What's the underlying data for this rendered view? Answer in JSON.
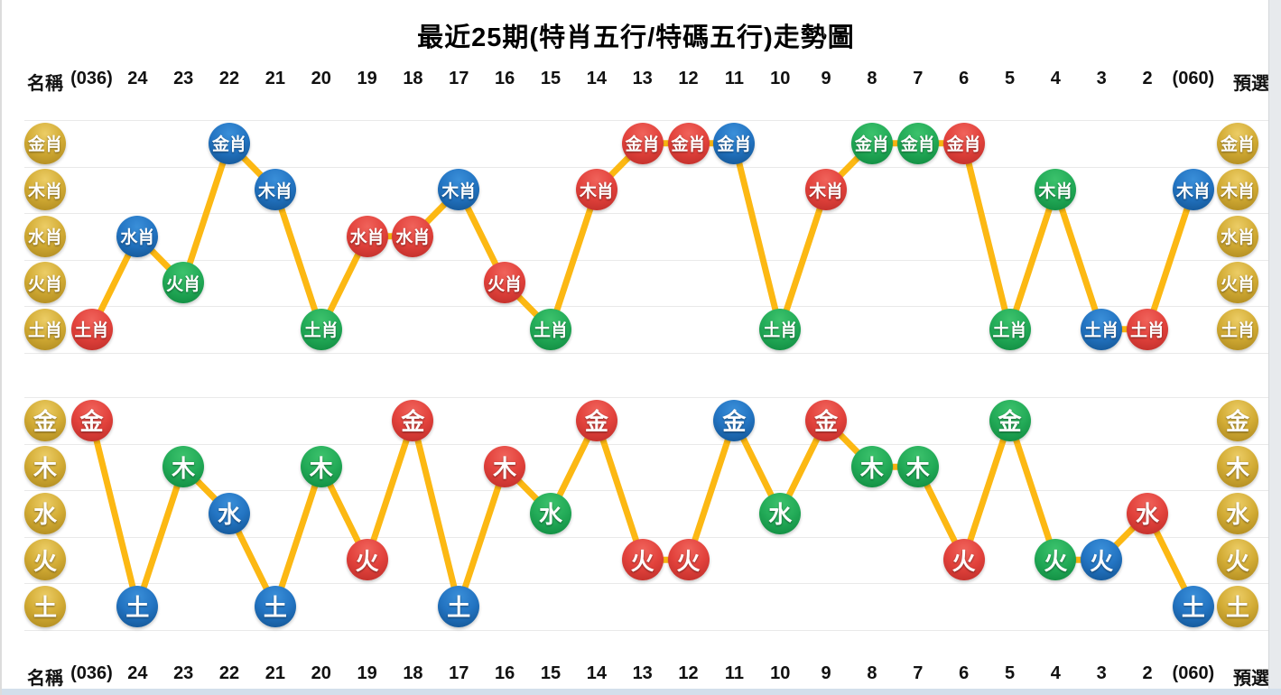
{
  "title": "最近25期(特肖五行/特碼五行)走勢圖",
  "header": {
    "left_label": "名稱",
    "right_label": "預選",
    "columns": [
      "(036)",
      "24",
      "23",
      "22",
      "21",
      "20",
      "19",
      "18",
      "17",
      "16",
      "15",
      "14",
      "13",
      "12",
      "11",
      "10",
      "9",
      "8",
      "7",
      "6",
      "5",
      "4",
      "3",
      "2",
      "(060)"
    ]
  },
  "colors": {
    "red": "#d6403a",
    "blue": "#1e6db8",
    "green": "#21a855",
    "gold": "#cda32c",
    "line": "#fcb813",
    "grid": "#e9e9e9"
  },
  "chart_data": [
    {
      "type": "line",
      "title": "特肖五行",
      "categories": [
        "(036)",
        "24",
        "23",
        "22",
        "21",
        "20",
        "19",
        "18",
        "17",
        "16",
        "15",
        "14",
        "13",
        "12",
        "11",
        "10",
        "9",
        "8",
        "7",
        "6",
        "5",
        "4",
        "3",
        "2",
        "(060)"
      ],
      "row_labels": [
        "金肖",
        "木肖",
        "水肖",
        "火肖",
        "土肖"
      ],
      "values": [
        "土肖",
        "水肖",
        "火肖",
        "金肖",
        "木肖",
        "土肖",
        "水肖",
        "水肖",
        "木肖",
        "火肖",
        "土肖",
        "木肖",
        "金肖",
        "金肖",
        "金肖",
        "土肖",
        "木肖",
        "金肖",
        "金肖",
        "金肖",
        "土肖",
        "木肖",
        "土肖",
        "土肖",
        "木肖"
      ],
      "point_colors": [
        "red",
        "blue",
        "green",
        "blue",
        "blue",
        "green",
        "red",
        "red",
        "blue",
        "red",
        "green",
        "red",
        "red",
        "red",
        "blue",
        "green",
        "red",
        "green",
        "green",
        "red",
        "green",
        "green",
        "blue",
        "red",
        "blue"
      ],
      "grid": true,
      "legend_position": "none"
    },
    {
      "type": "line",
      "title": "特碼五行",
      "categories": [
        "(036)",
        "24",
        "23",
        "22",
        "21",
        "20",
        "19",
        "18",
        "17",
        "16",
        "15",
        "14",
        "13",
        "12",
        "11",
        "10",
        "9",
        "8",
        "7",
        "6",
        "5",
        "4",
        "3",
        "2",
        "(060)"
      ],
      "row_labels": [
        "金",
        "木",
        "水",
        "火",
        "土"
      ],
      "values": [
        "金",
        "土",
        "木",
        "水",
        "土",
        "木",
        "火",
        "金",
        "土",
        "木",
        "水",
        "金",
        "火",
        "火",
        "金",
        "水",
        "金",
        "木",
        "木",
        "火",
        "金",
        "火",
        "火",
        "水",
        "土"
      ],
      "point_colors": [
        "red",
        "blue",
        "green",
        "blue",
        "blue",
        "green",
        "red",
        "red",
        "blue",
        "red",
        "green",
        "red",
        "red",
        "red",
        "blue",
        "green",
        "red",
        "green",
        "green",
        "red",
        "green",
        "green",
        "blue",
        "red",
        "blue"
      ],
      "grid": true,
      "legend_position": "none"
    }
  ]
}
